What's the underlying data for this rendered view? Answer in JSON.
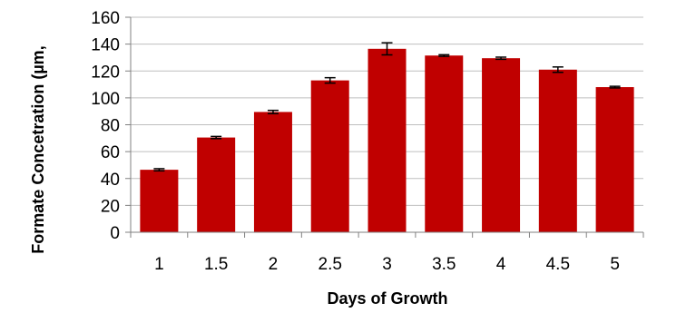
{
  "chart_data": {
    "type": "bar",
    "categories": [
      "1",
      "1.5",
      "2",
      "2.5",
      "3",
      "3.5",
      "4",
      "4.5",
      "5"
    ],
    "values": [
      46.5,
      70.5,
      89.5,
      113.0,
      136.5,
      131.5,
      129.5,
      121.0,
      108.0
    ],
    "errors": [
      0.8,
      0.8,
      1.2,
      2.0,
      4.5,
      0.6,
      0.8,
      2.0,
      0.6
    ],
    "title": "",
    "xlabel": "Days of Growth",
    "ylabel": "Formate Concetration (µm,",
    "ylim": [
      0,
      160
    ],
    "yticks": [
      "0",
      "20",
      "40",
      "60",
      "80",
      "100",
      "120",
      "140",
      "160"
    ],
    "grid": true,
    "legend": "none",
    "bar_color": "#c00000",
    "error_bar_color": "#000000",
    "gridline_color": "#bfbfbf"
  }
}
